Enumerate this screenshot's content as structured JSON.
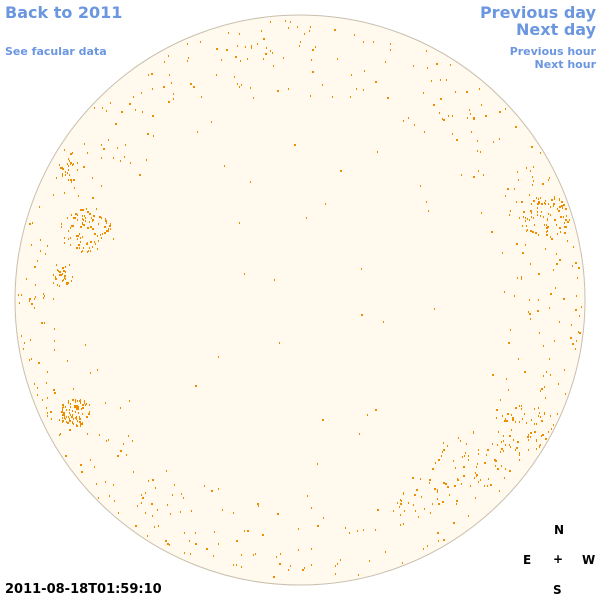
{
  "nav": {
    "back_label": "Back to 2011",
    "facular_label": "See facular data",
    "prev_day_label": "Previous day",
    "next_day_label": "Next day",
    "prev_hour_label": "Previous hour",
    "next_hour_label": "Next hour"
  },
  "timestamp": "2011-08-18T01:59:10",
  "compass": {
    "north": "N",
    "east": "E",
    "center": "+",
    "west": "W",
    "south": "S"
  },
  "colors": {
    "link": "#6b96e0",
    "disk_fill": "#fff9ee",
    "disk_border": "#c8bfae",
    "facula": "#f08c00"
  }
}
